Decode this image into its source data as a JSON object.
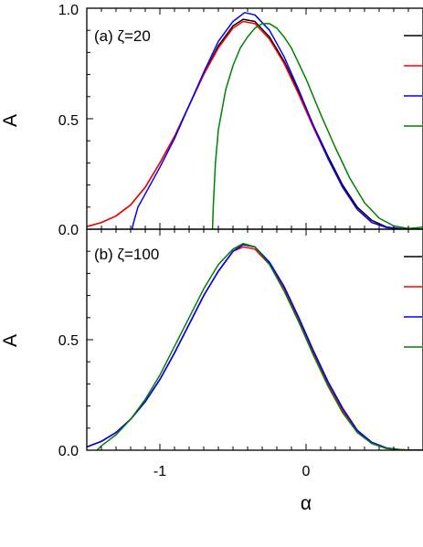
{
  "chart_data": [
    {
      "type": "line",
      "panel_label": "(a) ζ=20",
      "ylabel": "A",
      "xlim": [
        -1.5,
        0.8
      ],
      "ylim": [
        0.0,
        1.0
      ],
      "y_ticks": [
        "0.0",
        "0.5",
        "1.0"
      ],
      "x_ticks": [],
      "legend_position": "right",
      "series": [
        {
          "color": "#000000",
          "x": [
            -1.5,
            -1.4,
            -1.3,
            -1.2,
            -1.1,
            -1.0,
            -0.9,
            -0.8,
            -0.7,
            -0.6,
            -0.5,
            -0.43,
            -0.35,
            -0.25,
            -0.15,
            -0.05,
            0.05,
            0.15,
            0.25,
            0.35,
            0.45,
            0.55,
            0.65,
            0.72,
            0.8
          ],
          "y": [
            0.012,
            0.03,
            0.06,
            0.11,
            0.19,
            0.3,
            0.42,
            0.56,
            0.7,
            0.83,
            0.92,
            0.95,
            0.94,
            0.87,
            0.76,
            0.62,
            0.47,
            0.33,
            0.2,
            0.1,
            0.04,
            0.01,
            0.002,
            0.0,
            0.0
          ]
        },
        {
          "color": "#ff0000",
          "x": [
            -1.5,
            -1.4,
            -1.3,
            -1.2,
            -1.1,
            -1.0,
            -0.9,
            -0.8,
            -0.7,
            -0.6,
            -0.5,
            -0.43,
            -0.35,
            -0.25,
            -0.15,
            -0.05,
            0.05,
            0.15,
            0.25,
            0.35,
            0.45,
            0.55,
            0.65,
            0.72,
            0.8
          ],
          "y": [
            0.012,
            0.03,
            0.06,
            0.11,
            0.19,
            0.3,
            0.42,
            0.56,
            0.7,
            0.82,
            0.91,
            0.94,
            0.93,
            0.86,
            0.75,
            0.61,
            0.46,
            0.32,
            0.19,
            0.09,
            0.03,
            0.008,
            0.002,
            0.0,
            0.0
          ]
        },
        {
          "color": "#0000ff",
          "x": [
            -1.19,
            -1.18,
            -1.15,
            -1.1,
            -1.0,
            -0.9,
            -0.8,
            -0.7,
            -0.6,
            -0.5,
            -0.42,
            -0.35,
            -0.25,
            -0.15,
            -0.05,
            0.05,
            0.15,
            0.25,
            0.35,
            0.45,
            0.55,
            0.65,
            0.72,
            0.8
          ],
          "y": [
            0.0,
            0.03,
            0.1,
            0.16,
            0.28,
            0.41,
            0.56,
            0.71,
            0.85,
            0.94,
            0.98,
            0.97,
            0.9,
            0.78,
            0.63,
            0.47,
            0.32,
            0.19,
            0.09,
            0.03,
            0.008,
            0.002,
            0.0,
            0.0
          ]
        },
        {
          "color": "#008000",
          "x": [
            -0.64,
            -0.635,
            -0.62,
            -0.6,
            -0.55,
            -0.5,
            -0.45,
            -0.4,
            -0.35,
            -0.3,
            -0.25,
            -0.2,
            -0.15,
            -0.1,
            -0.05,
            0.0,
            0.1,
            0.2,
            0.3,
            0.4,
            0.5,
            0.6,
            0.7,
            0.75,
            0.8
          ],
          "y": [
            0.0,
            0.1,
            0.3,
            0.45,
            0.63,
            0.74,
            0.82,
            0.87,
            0.91,
            0.93,
            0.93,
            0.91,
            0.87,
            0.82,
            0.75,
            0.68,
            0.52,
            0.37,
            0.23,
            0.12,
            0.05,
            0.015,
            0.003,
            0.006,
            0.01
          ]
        }
      ]
    },
    {
      "type": "line",
      "panel_label": "(b) ζ=100",
      "ylabel": "A",
      "xlabel": "α",
      "xlim": [
        -1.5,
        0.8
      ],
      "ylim": [
        0.0,
        1.0
      ],
      "y_ticks": [
        "0.0",
        "0.5"
      ],
      "x_ticks": [
        "-1",
        "0"
      ],
      "legend_position": "right",
      "series": [
        {
          "color": "#000000",
          "x": [
            -1.5,
            -1.4,
            -1.3,
            -1.2,
            -1.1,
            -1.0,
            -0.9,
            -0.8,
            -0.7,
            -0.6,
            -0.5,
            -0.43,
            -0.35,
            -0.25,
            -0.15,
            -0.05,
            0.05,
            0.15,
            0.25,
            0.35,
            0.45,
            0.55,
            0.65,
            0.72,
            0.8
          ],
          "y": [
            0.015,
            0.04,
            0.08,
            0.14,
            0.22,
            0.32,
            0.44,
            0.57,
            0.7,
            0.81,
            0.9,
            0.93,
            0.92,
            0.85,
            0.74,
            0.6,
            0.45,
            0.31,
            0.19,
            0.09,
            0.035,
            0.01,
            0.002,
            0.0,
            0.0
          ]
        },
        {
          "color": "#ff0000",
          "x": [
            -1.5,
            -1.4,
            -1.3,
            -1.2,
            -1.1,
            -1.0,
            -0.9,
            -0.8,
            -0.7,
            -0.6,
            -0.5,
            -0.43,
            -0.35,
            -0.25,
            -0.15,
            -0.05,
            0.05,
            0.15,
            0.25,
            0.35,
            0.45,
            0.55,
            0.65,
            0.72,
            0.8
          ],
          "y": [
            0.015,
            0.04,
            0.08,
            0.14,
            0.22,
            0.32,
            0.44,
            0.57,
            0.7,
            0.81,
            0.9,
            0.92,
            0.91,
            0.84,
            0.73,
            0.59,
            0.44,
            0.3,
            0.18,
            0.085,
            0.03,
            0.008,
            0.002,
            0.0,
            0.0
          ]
        },
        {
          "color": "#0000ff",
          "x": [
            -1.5,
            -1.4,
            -1.3,
            -1.2,
            -1.1,
            -1.0,
            -0.9,
            -0.8,
            -0.7,
            -0.6,
            -0.5,
            -0.43,
            -0.35,
            -0.25,
            -0.15,
            -0.05,
            0.05,
            0.15,
            0.25,
            0.35,
            0.45,
            0.55,
            0.65,
            0.72,
            0.8
          ],
          "y": [
            0.015,
            0.04,
            0.08,
            0.14,
            0.22,
            0.32,
            0.44,
            0.57,
            0.7,
            0.81,
            0.9,
            0.93,
            0.92,
            0.85,
            0.74,
            0.6,
            0.45,
            0.31,
            0.19,
            0.09,
            0.035,
            0.01,
            0.002,
            0.0,
            0.0
          ]
        },
        {
          "color": "#008000",
          "x": [
            -1.43,
            -1.4,
            -1.3,
            -1.2,
            -1.1,
            -1.0,
            -0.9,
            -0.8,
            -0.7,
            -0.6,
            -0.5,
            -0.43,
            -0.35,
            -0.25,
            -0.15,
            -0.05,
            0.05,
            0.15,
            0.25,
            0.35,
            0.45,
            0.55,
            0.65,
            0.72,
            0.8
          ],
          "y": [
            0.0,
            0.02,
            0.07,
            0.14,
            0.23,
            0.34,
            0.47,
            0.6,
            0.73,
            0.84,
            0.91,
            0.935,
            0.92,
            0.84,
            0.72,
            0.58,
            0.43,
            0.29,
            0.17,
            0.08,
            0.03,
            0.008,
            0.002,
            0.0,
            0.0
          ]
        }
      ]
    }
  ]
}
